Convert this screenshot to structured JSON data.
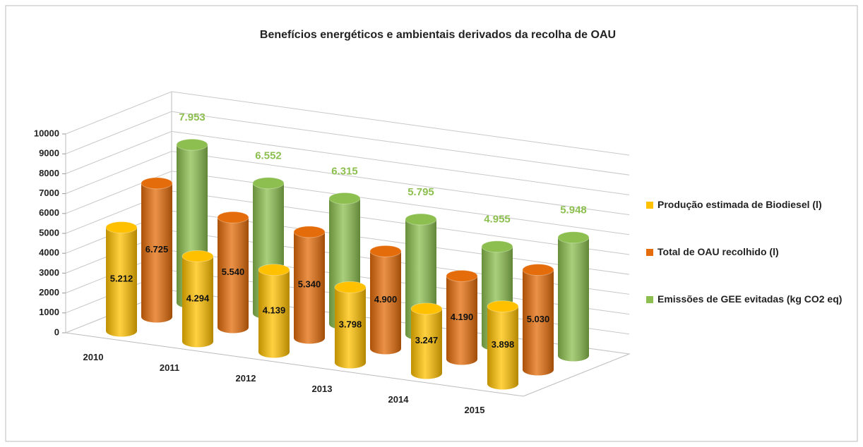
{
  "chart_data": {
    "type": "bar3d",
    "title": "Benefícios energéticos e ambientais derivados da recolha de OAU",
    "categories": [
      "2010",
      "2011",
      "2012",
      "2013",
      "2014",
      "2015"
    ],
    "series": [
      {
        "name": "Produção estimada de Biodiesel (l)",
        "color": "#ffc000",
        "values": [
          5212,
          4294,
          4139,
          3798,
          3247,
          3898
        ],
        "value_labels": [
          "5.212",
          "4.294",
          "4.139",
          "3.798",
          "3.247",
          "3.898"
        ]
      },
      {
        "name": "Total de OAU recolhido (l)",
        "color": "#e46c0a",
        "values": [
          6725,
          5540,
          5340,
          4900,
          4190,
          5030
        ],
        "value_labels": [
          "6.725",
          "5.540",
          "5.340",
          "4.900",
          "4.190",
          "5.030"
        ]
      },
      {
        "name": "Emissões de GEE evitadas (kg CO2 eq)",
        "color": "#8cbf4f",
        "values": [
          7953,
          6552,
          6315,
          5795,
          4955,
          5948
        ],
        "value_labels": [
          "7.953",
          "6.552",
          "6.315",
          "5.795",
          "4.955",
          "5.948"
        ]
      }
    ],
    "ylim": [
      0,
      10000
    ],
    "yticks": [
      0,
      1000,
      2000,
      3000,
      4000,
      5000,
      6000,
      7000,
      8000,
      9000,
      10000
    ],
    "grid": true,
    "legend": "right"
  }
}
